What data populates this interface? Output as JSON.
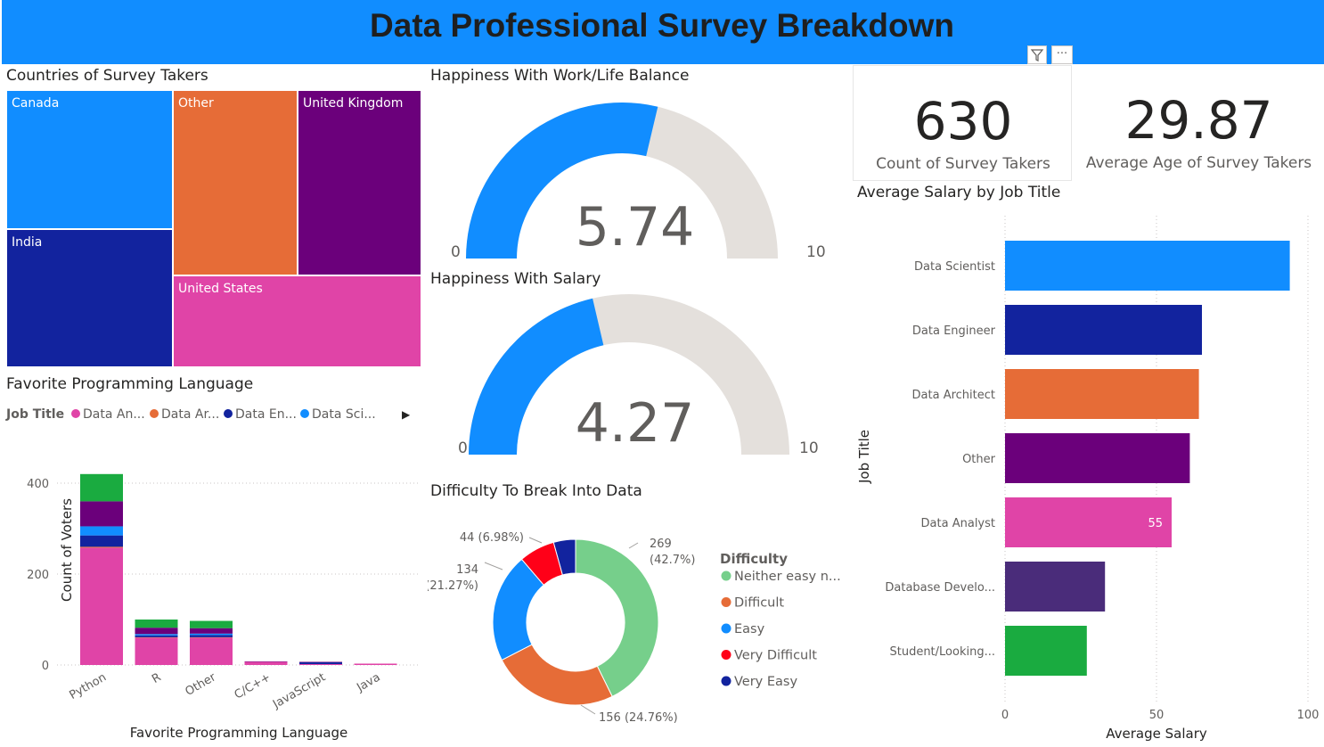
{
  "page": {
    "title": "Data Professional Survey Breakdown"
  },
  "visual_header": {
    "filter_icon": "filter-icon",
    "more_icon": "more-options-icon",
    "more_label": "···"
  },
  "treemap": {
    "title": "Countries of Survey Takers",
    "items": [
      {
        "label": "Canada",
        "color": "#118dff"
      },
      {
        "label": "India",
        "color": "#12239e"
      },
      {
        "label": "Other",
        "color": "#e66c37"
      },
      {
        "label": "United Kingdom",
        "color": "#6b007b"
      },
      {
        "label": "United States",
        "color": "#e044a7"
      }
    ]
  },
  "gauge_work": {
    "title": "Happiness With Work/Life Balance",
    "value": "5.74",
    "min": "0",
    "max": "10"
  },
  "gauge_salary": {
    "title": "Happiness With Salary",
    "value": "4.27",
    "min": "0",
    "max": "10"
  },
  "card_count": {
    "value": "630",
    "label": "Count of Survey Takers"
  },
  "card_age": {
    "value": "29.87",
    "label": "Average Age of Survey Takers"
  },
  "chart_data": [
    {
      "type": "bar",
      "orientation": "vertical-stacked",
      "title": "Favorite Programming Language",
      "xlabel": "Favorite Programming Language",
      "ylabel": "Count of Voters",
      "ylim": [
        0,
        430
      ],
      "yticks": [
        "0",
        "200",
        "400"
      ],
      "legend_title": "Job Title",
      "legend_items": [
        "Data An...",
        "Data Ar...",
        "Data En...",
        "Data Sci..."
      ],
      "legend_arrow": "▶",
      "categories": [
        "Python",
        "R",
        "Other",
        "C/C++",
        "JavaScript",
        "Java"
      ],
      "series": [
        {
          "name": "Data Analyst",
          "color": "#e044a7",
          "values": [
            258,
            60,
            60,
            7,
            2,
            3
          ]
        },
        {
          "name": "Data Architect",
          "color": "#e66c37",
          "values": [
            2,
            1,
            1,
            0,
            0,
            0
          ]
        },
        {
          "name": "Data Engineer",
          "color": "#12239e",
          "values": [
            25,
            4,
            5,
            0,
            4,
            0
          ]
        },
        {
          "name": "Data Scientist",
          "color": "#118dff",
          "values": [
            20,
            3,
            3,
            0,
            0,
            0
          ]
        },
        {
          "name": "Other",
          "color": "#6b007b",
          "values": [
            55,
            14,
            12,
            1,
            1,
            0
          ]
        },
        {
          "name": "Student/Looking...",
          "color": "#1aab40",
          "values": [
            60,
            18,
            16,
            0,
            0,
            0
          ]
        }
      ]
    },
    {
      "type": "pie",
      "subtype": "donut",
      "title": "Difficulty To Break Into Data",
      "legend_title": "Difficulty",
      "slices": [
        {
          "name": "Neither easy n...",
          "value": 269,
          "label1": "269",
          "label2": "(42.7%)",
          "color": "#76cf8b"
        },
        {
          "name": "Difficult",
          "value": 156,
          "label1": "156 (24.76%)",
          "label2": "",
          "color": "#e66c37"
        },
        {
          "name": "Easy",
          "value": 134,
          "label1": "134",
          "label2": "(21.27%)",
          "color": "#118dff"
        },
        {
          "name": "Very Difficult",
          "value": 44,
          "label1": "44 (6.98%)",
          "label2": "",
          "color": "#ff0018"
        },
        {
          "name": "Very Easy",
          "value": 27,
          "label1": "",
          "label2": "",
          "color": "#12239e"
        }
      ]
    },
    {
      "type": "bar",
      "orientation": "horizontal",
      "title": "Average Salary by Job Title",
      "xlabel": "Average Salary",
      "ylabel": "Job Title",
      "xlim": [
        0,
        100
      ],
      "xticks": [
        "0",
        "50",
        "100"
      ],
      "categories": [
        "Data Scientist",
        "Data Engineer",
        "Data Architect",
        "Other",
        "Data Analyst",
        "Database Develo...",
        "Student/Looking..."
      ],
      "values": [
        94,
        65,
        64,
        61,
        55,
        33,
        27
      ],
      "colors": [
        "#118dff",
        "#12239e",
        "#e66c37",
        "#6b007b",
        "#e044a7",
        "#4a2c7a",
        "#1aab40"
      ],
      "data_labels": [
        "",
        "",
        "",
        "",
        "55",
        "",
        ""
      ]
    }
  ]
}
